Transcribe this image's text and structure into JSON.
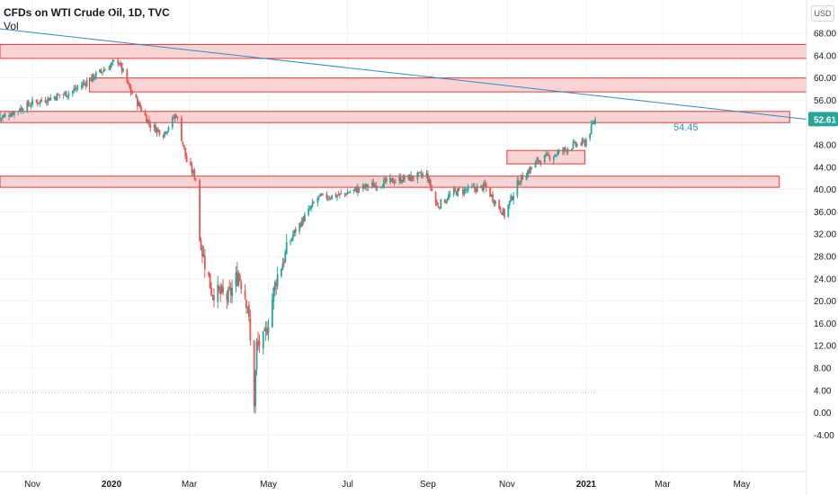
{
  "title": "CFDs on WTI Crude Oil, 1D, TVC",
  "volume_label": "Vol",
  "currency": "USD",
  "price_badge": "52.61",
  "trendline_label": "54.45",
  "colors": {
    "up": "#26a69a",
    "down": "#ef5350",
    "zone_fill": "#f8c6c6",
    "zone_stroke": "#e53935",
    "trendline": "#2f8ac7",
    "badge": "#26a69a"
  },
  "chart_data": {
    "type": "candlestick",
    "ylim": [
      -6,
      70
    ],
    "y_ticks": [
      "68.00",
      "64.00",
      "60.00",
      "56.00",
      "52.00",
      "48.00",
      "44.00",
      "40.00",
      "36.00",
      "32.00",
      "28.00",
      "24.00",
      "20.00",
      "16.00",
      "12.00",
      "8.00",
      "4.00",
      "0.00",
      "-4.00"
    ],
    "x_ticks": [
      {
        "label": "Nov",
        "date": "2019-11-01"
      },
      {
        "label": "2020",
        "date": "2020-01-01"
      },
      {
        "label": "Mar",
        "date": "2020-03-01"
      },
      {
        "label": "May",
        "date": "2020-05-01"
      },
      {
        "label": "Jul",
        "date": "2020-07-01"
      },
      {
        "label": "Sep",
        "date": "2020-09-01"
      },
      {
        "label": "Nov",
        "date": "2020-11-01"
      },
      {
        "label": "2021",
        "date": "2021-01-01"
      },
      {
        "label": "Mar",
        "date": "2021-03-01"
      },
      {
        "label": "May",
        "date": "2021-05-01"
      }
    ],
    "xlim": [
      "2019-10-07",
      "2021-06-20"
    ],
    "last_price": 52.61,
    "zones": [
      {
        "start": "2019-10-07",
        "end": "2021-06-20",
        "low": 63.5,
        "high": 66.0
      },
      {
        "start": "2019-12-15",
        "end": "2021-06-20",
        "low": 57.5,
        "high": 60.0
      },
      {
        "start": "2019-10-07",
        "end": "2021-06-07",
        "low": 52.0,
        "high": 54.0
      },
      {
        "start": "2019-10-07",
        "end": "2021-05-30",
        "low": 40.4,
        "high": 42.4
      },
      {
        "start": "2020-11-01",
        "end": "2020-12-31",
        "low": 44.6,
        "high": 47.0
      }
    ],
    "trendline": {
      "start_date": "2019-10-07",
      "start_value": 68.8,
      "end_date": "2021-06-20",
      "end_value": 52.6
    },
    "reference_line": {
      "value": 3.6,
      "end_date": "2021-01-08"
    },
    "ohlc_keypoints": [
      [
        "2019-10-07",
        52.8
      ],
      [
        "2019-11-01",
        55.5
      ],
      [
        "2019-12-01",
        57.5
      ],
      [
        "2019-12-20",
        60.5
      ],
      [
        "2020-01-06",
        63.2
      ],
      [
        "2020-01-15",
        58.0
      ],
      [
        "2020-01-31",
        51.5
      ],
      [
        "2020-02-10",
        50.0
      ],
      [
        "2020-02-20",
        53.5
      ],
      [
        "2020-02-28",
        45.0
      ],
      [
        "2020-03-06",
        42.0
      ],
      [
        "2020-03-09",
        31.0
      ],
      [
        "2020-03-18",
        22.0
      ],
      [
        "2020-03-31",
        20.5
      ],
      [
        "2020-04-08",
        25.0
      ],
      [
        "2020-04-15",
        19.5
      ],
      [
        "2020-04-20",
        2.0
      ],
      [
        "2020-04-22",
        12.0
      ],
      [
        "2020-04-28",
        13.0
      ],
      [
        "2020-05-07",
        24.0
      ],
      [
        "2020-05-20",
        32.0
      ],
      [
        "2020-06-08",
        38.5
      ],
      [
        "2020-06-25",
        39.0
      ],
      [
        "2020-07-15",
        40.5
      ],
      [
        "2020-08-10",
        41.8
      ],
      [
        "2020-08-31",
        42.6
      ],
      [
        "2020-09-08",
        37.0
      ],
      [
        "2020-09-21",
        39.5
      ],
      [
        "2020-10-15",
        40.5
      ],
      [
        "2020-10-30",
        35.5
      ],
      [
        "2020-11-10",
        41.5
      ],
      [
        "2020-11-25",
        45.2
      ],
      [
        "2020-12-10",
        46.5
      ],
      [
        "2020-12-21",
        47.8
      ],
      [
        "2020-12-31",
        48.4
      ],
      [
        "2021-01-08",
        52.6
      ]
    ]
  }
}
